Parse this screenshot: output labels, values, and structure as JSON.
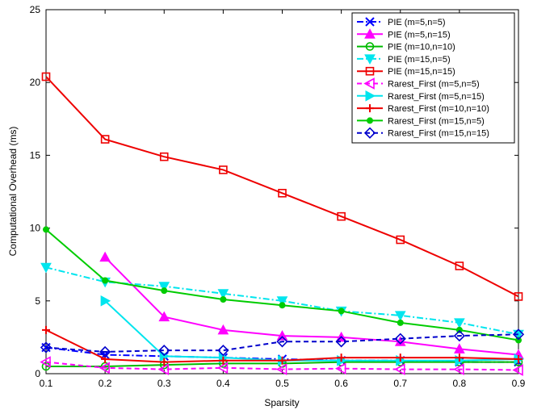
{
  "chart_data": {
    "type": "line",
    "title": "",
    "xlabel": "Sparsity",
    "ylabel": "Computational Overhead (ms)",
    "xlim": [
      0.1,
      0.9
    ],
    "ylim": [
      0,
      25
    ],
    "xticks": [
      0.1,
      0.2,
      0.3,
      0.4,
      0.5,
      0.6,
      0.7,
      0.8,
      0.9
    ],
    "xtick_labels": [
      "0.1",
      "0.2",
      "0.3",
      "0.4",
      "0.5",
      "0.6",
      "0.7",
      "0.8",
      "0.9"
    ],
    "yticks": [
      0,
      5,
      10,
      15,
      20,
      25
    ],
    "ytick_labels": [
      "0",
      "5",
      "10",
      "15",
      "20",
      "25"
    ],
    "grid": false,
    "legend_position": "top-right",
    "x": [
      0.1,
      0.2,
      0.3,
      0.4,
      0.5,
      0.6,
      0.7,
      0.8,
      0.9
    ],
    "series": [
      {
        "name": "PIE (m=5,n=5)",
        "color": "#0000ff",
        "dash": "dashdot",
        "marker": "x",
        "values": [
          1.8,
          1.3,
          1.2,
          1.1,
          1.0,
          0.9,
          0.9,
          0.8,
          0.8
        ]
      },
      {
        "name": "PIE (m=5,n=15)",
        "color": "#ff00ff",
        "dash": "solid",
        "marker": "triangle-up",
        "values": [
          null,
          8.0,
          3.9,
          3.0,
          2.6,
          2.5,
          2.2,
          1.7,
          1.3
        ]
      },
      {
        "name": "PIE (m=10,n=10)",
        "color": "#00bb00",
        "dash": "solid",
        "marker": "circle",
        "values": [
          0.5,
          0.5,
          0.6,
          0.7,
          0.7,
          0.8,
          0.8,
          0.8,
          0.8
        ]
      },
      {
        "name": "PIE (m=15,n=5)",
        "color": "#00e5ee",
        "dash": "dashdot",
        "marker": "triangle-down",
        "values": [
          7.3,
          6.3,
          6.0,
          5.5,
          5.0,
          4.3,
          4.0,
          3.5,
          2.7
        ]
      },
      {
        "name": "PIE (m=15,n=15)",
        "color": "#ee0000",
        "dash": "solid",
        "marker": "square",
        "values": [
          20.4,
          16.1,
          14.9,
          14.0,
          12.4,
          10.8,
          9.2,
          7.4,
          5.3
        ]
      },
      {
        "name": "Rarest_First (m=5,n=5)",
        "color": "#ff00ff",
        "dash": "dashed",
        "marker": "triangle-left",
        "values": [
          0.8,
          0.4,
          0.3,
          0.4,
          0.3,
          0.35,
          0.3,
          0.3,
          0.25
        ]
      },
      {
        "name": "Rarest_First (m=5,n=15)",
        "color": "#00e5ee",
        "dash": "solid",
        "marker": "triangle-right",
        "values": [
          null,
          5.0,
          1.2,
          1.1,
          0.9,
          0.9,
          0.9,
          0.9,
          1.0
        ]
      },
      {
        "name": "Rarest_First (m=10,n=10)",
        "color": "#ee0000",
        "dash": "solid",
        "marker": "plus",
        "values": [
          3.0,
          1.0,
          0.8,
          0.9,
          0.9,
          1.1,
          1.1,
          1.1,
          1.0
        ]
      },
      {
        "name": "Rarest_First (m=15,n=5)",
        "color": "#00cc00",
        "dash": "solid",
        "marker": "dot",
        "values": [
          9.9,
          6.4,
          5.7,
          5.1,
          4.7,
          4.3,
          3.5,
          3.0,
          2.3
        ]
      },
      {
        "name": "Rarest_First (m=15,n=15)",
        "color": "#0000cc",
        "dash": "dashed",
        "marker": "diamond",
        "values": [
          1.8,
          1.5,
          1.6,
          1.6,
          2.2,
          2.2,
          2.4,
          2.6,
          2.7
        ]
      }
    ]
  }
}
